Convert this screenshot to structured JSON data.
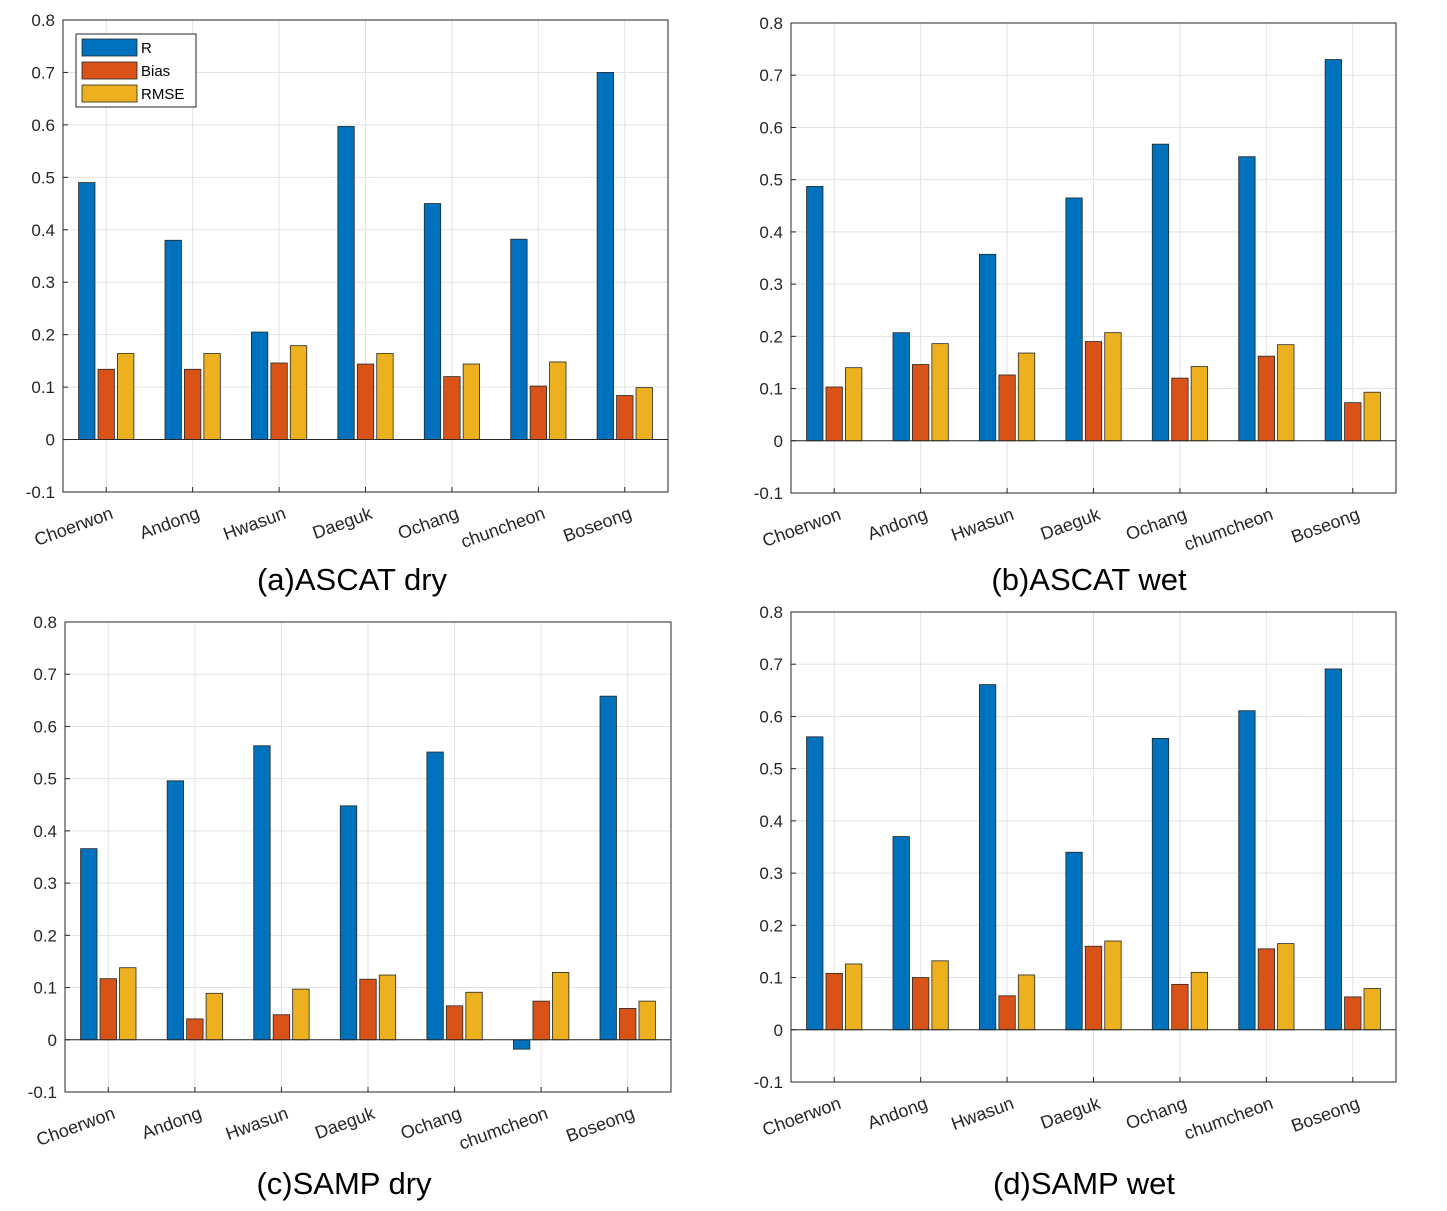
{
  "colors": {
    "R": "#0072BD",
    "Bias": "#D95319",
    "RMSE": "#EDB120"
  },
  "legend": [
    "R",
    "Bias",
    "RMSE"
  ],
  "chart_data": [
    {
      "type": "bar",
      "caption": "(a)ASCAT dry",
      "categories": [
        "Choerwon",
        "Andong",
        "Hwasun",
        "Daeguk",
        "Ochang",
        "chuncheon",
        "Boseong"
      ],
      "ylim": [
        -0.1,
        0.8
      ],
      "yticks": [
        "-0.1",
        "0",
        "0.1",
        "0.2",
        "0.3",
        "0.4",
        "0.5",
        "0.6",
        "0.7",
        "0.8"
      ],
      "grid": true,
      "legend_position": "top-left",
      "series": [
        {
          "name": "R",
          "values": [
            0.49,
            0.38,
            0.205,
            0.597,
            0.45,
            0.382,
            0.7
          ]
        },
        {
          "name": "Bias",
          "values": [
            0.134,
            0.134,
            0.146,
            0.144,
            0.12,
            0.102,
            0.084
          ]
        },
        {
          "name": "RMSE",
          "values": [
            0.164,
            0.164,
            0.179,
            0.164,
            0.144,
            0.148,
            0.099
          ]
        }
      ]
    },
    {
      "type": "bar",
      "caption": "(b)ASCAT wet",
      "categories": [
        "Choerwon",
        "Andong",
        "Hwasun",
        "Daeguk",
        "Ochang",
        "chumcheon",
        "Boseong"
      ],
      "ylim": [
        -0.1,
        0.8
      ],
      "yticks": [
        "-0.1",
        "0",
        "0.1",
        "0.2",
        "0.3",
        "0.4",
        "0.5",
        "0.6",
        "0.7",
        "0.8"
      ],
      "grid": true,
      "series": [
        {
          "name": "R",
          "values": [
            0.487,
            0.207,
            0.357,
            0.465,
            0.568,
            0.544,
            0.73
          ]
        },
        {
          "name": "Bias",
          "values": [
            0.103,
            0.146,
            0.126,
            0.19,
            0.12,
            0.162,
            0.073
          ]
        },
        {
          "name": "RMSE",
          "values": [
            0.14,
            0.186,
            0.168,
            0.207,
            0.142,
            0.184,
            0.093
          ]
        }
      ]
    },
    {
      "type": "bar",
      "caption": "(c)SAMP dry",
      "categories": [
        "Choerwon",
        "Andong",
        "Hwasun",
        "Daeguk",
        "Ochang",
        "chumcheon",
        "Boseong"
      ],
      "ylim": [
        -0.1,
        0.8
      ],
      "yticks": [
        "-0.1",
        "0",
        "0.1",
        "0.2",
        "0.3",
        "0.4",
        "0.5",
        "0.6",
        "0.7",
        "0.8"
      ],
      "grid": true,
      "series": [
        {
          "name": "R",
          "values": [
            0.366,
            0.496,
            0.563,
            0.448,
            0.551,
            -0.018,
            0.658
          ]
        },
        {
          "name": "Bias",
          "values": [
            0.117,
            0.04,
            0.048,
            0.116,
            0.065,
            0.074,
            0.06
          ]
        },
        {
          "name": "RMSE",
          "values": [
            0.138,
            0.089,
            0.097,
            0.124,
            0.091,
            0.129,
            0.074
          ]
        }
      ]
    },
    {
      "type": "bar",
      "caption": "(d)SAMP wet",
      "categories": [
        "Choerwon",
        "Andong",
        "Hwasun",
        "Daeguk",
        "Ochang",
        "chumcheon",
        "Boseong"
      ],
      "ylim": [
        -0.1,
        0.8
      ],
      "yticks": [
        "-0.1",
        "0",
        "0.1",
        "0.2",
        "0.3",
        "0.4",
        "0.5",
        "0.6",
        "0.7",
        "0.8"
      ],
      "grid": true,
      "series": [
        {
          "name": "R",
          "values": [
            0.561,
            0.37,
            0.661,
            0.34,
            0.558,
            0.611,
            0.691
          ]
        },
        {
          "name": "Bias",
          "values": [
            0.108,
            0.1,
            0.065,
            0.16,
            0.087,
            0.155,
            0.063
          ]
        },
        {
          "name": "RMSE",
          "values": [
            0.126,
            0.132,
            0.105,
            0.17,
            0.11,
            0.165,
            0.079
          ]
        }
      ]
    }
  ]
}
